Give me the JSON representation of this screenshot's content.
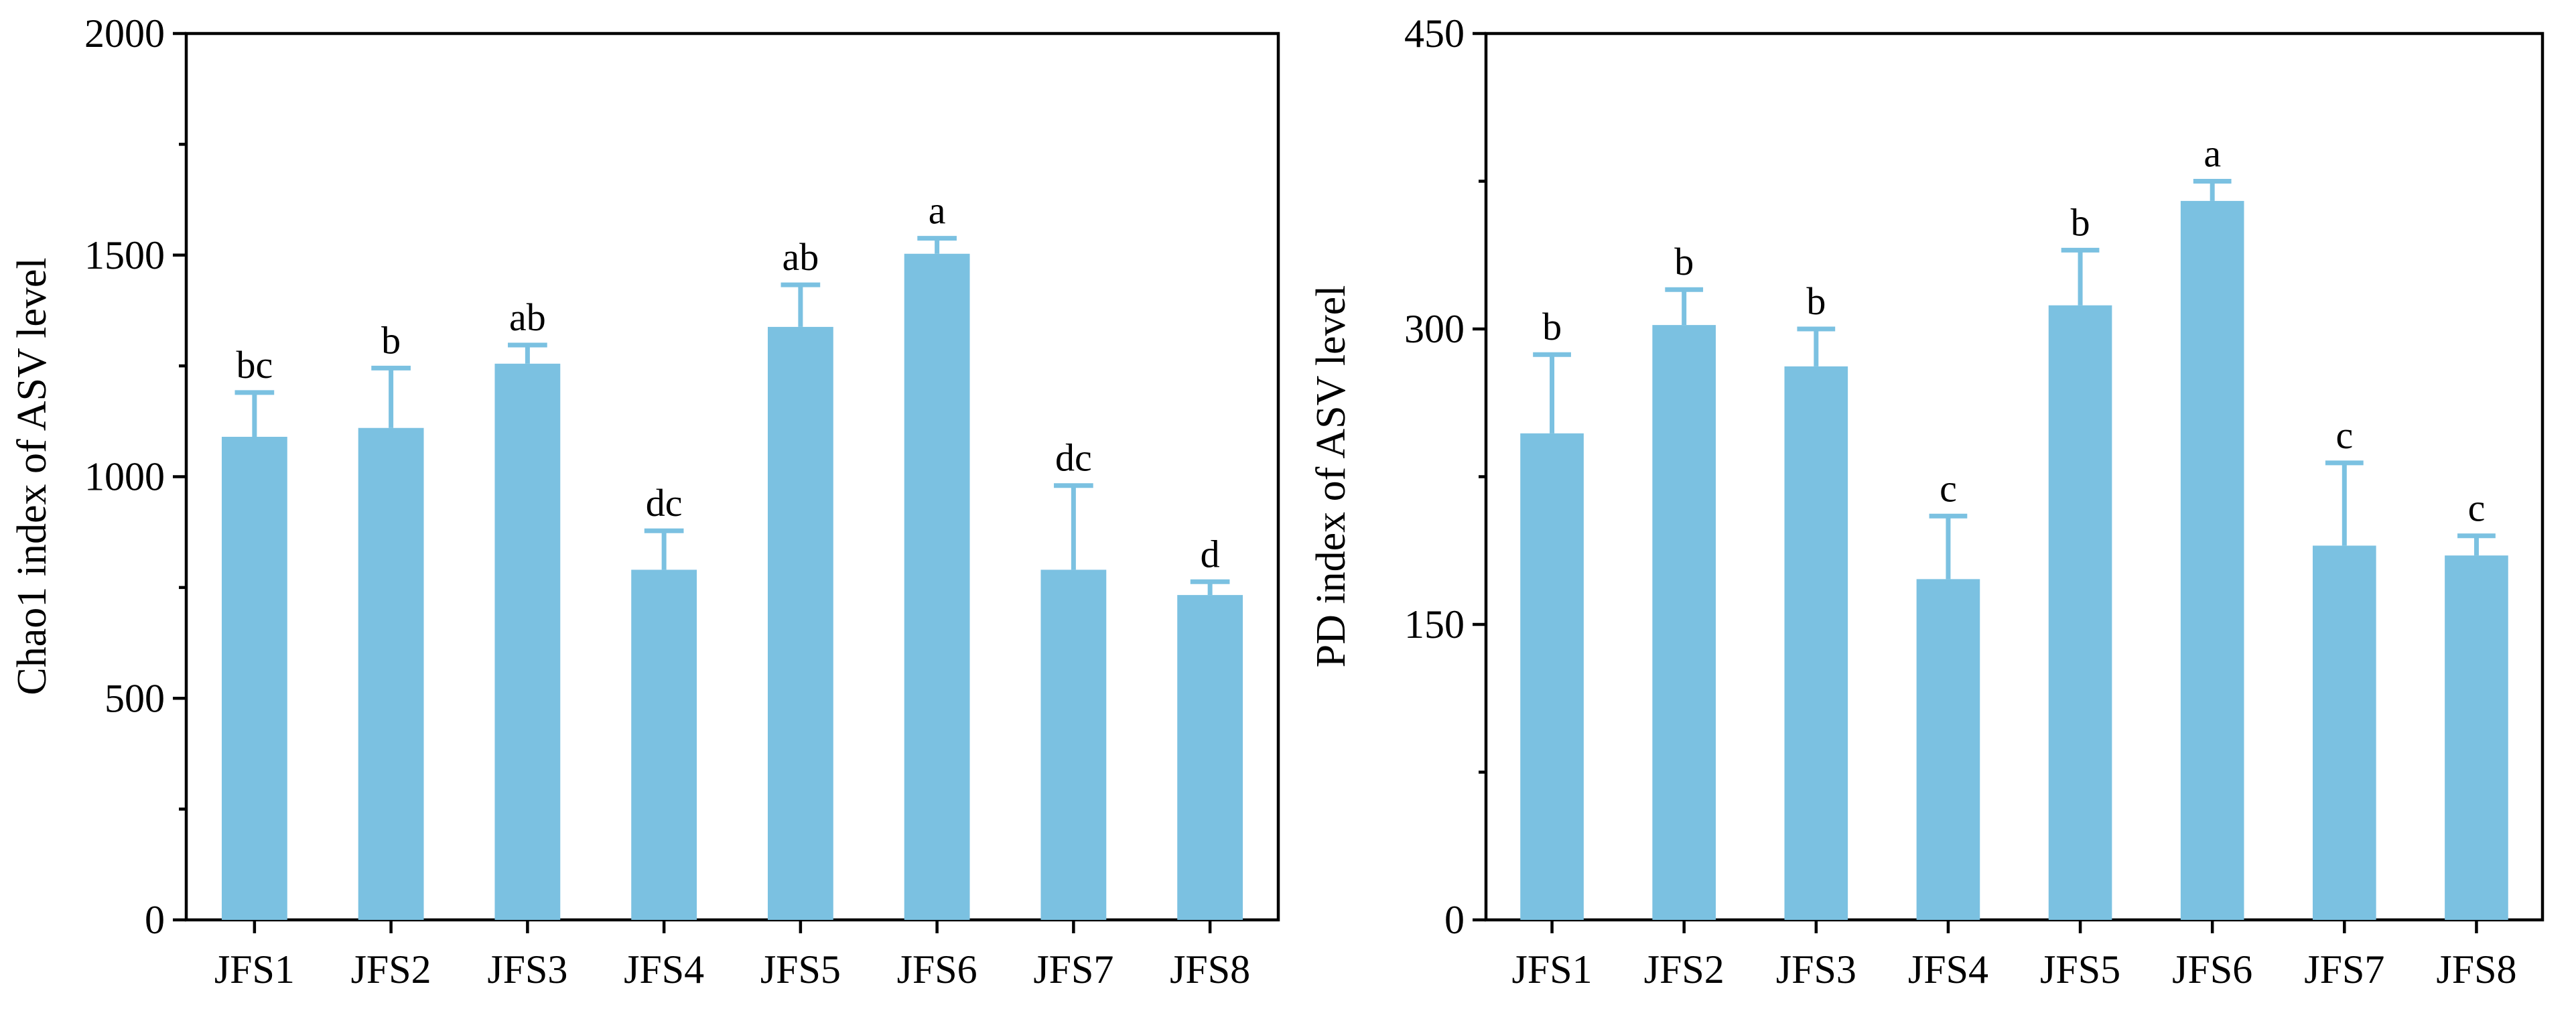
{
  "chart_data": [
    {
      "type": "bar",
      "title": "",
      "xlabel": "",
      "ylabel": "Chao1 index of ASV level",
      "ylim": [
        0,
        2000
      ],
      "yticks": [
        "0",
        "500",
        "1000",
        "1500",
        "2000"
      ],
      "categories": [
        "JFS1",
        "JFS2",
        "JFS3",
        "JFS4",
        "JFS5",
        "JFS6",
        "JFS7",
        "JFS8"
      ],
      "series": [
        {
          "name": "Chao1",
          "values": [
            1090,
            1110,
            1255,
            790,
            1338,
            1503,
            790,
            733
          ],
          "errors": [
            100,
            135,
            42,
            88,
            95,
            35,
            190,
            30
          ],
          "significance": [
            "bc",
            "b",
            "ab",
            "dc",
            "ab",
            "a",
            "dc",
            "d"
          ]
        }
      ]
    },
    {
      "type": "bar",
      "title": "",
      "xlabel": "",
      "ylabel": "PD index of ASV level",
      "ylim": [
        0,
        450
      ],
      "yticks": [
        "0",
        "150",
        "300",
        "450"
      ],
      "categories": [
        "JFS1",
        "JFS2",
        "JFS3",
        "JFS4",
        "JFS5",
        "JFS6",
        "JFS7",
        "JFS8"
      ],
      "series": [
        {
          "name": "PD",
          "values": [
            247,
            302,
            281,
            173,
            312,
            365,
            190,
            185
          ],
          "errors": [
            40,
            18,
            19,
            32,
            28,
            10,
            42,
            10
          ],
          "significance": [
            "b",
            "b",
            "b",
            "c",
            "b",
            "a",
            "c",
            "c"
          ]
        }
      ]
    }
  ],
  "colors": {
    "bar": "#7bc1e1",
    "error_bar": "#7bc1e1",
    "axis": "#000000"
  }
}
